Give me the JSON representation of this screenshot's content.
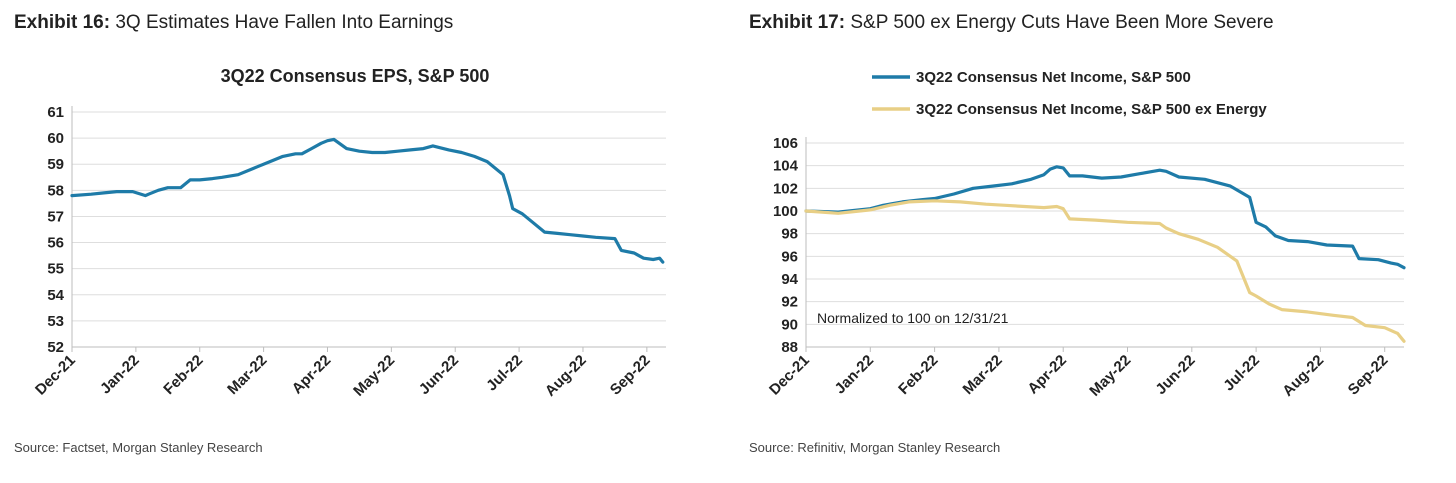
{
  "exhibit16": {
    "label": "Exhibit 16:",
    "title": "3Q Estimates Have Fallen Into Earnings",
    "source": "Source: Factset, Morgan Stanley Research"
  },
  "exhibit17": {
    "label": "Exhibit 17:",
    "title": "S&P 500 ex Energy Cuts Have Been More Severe",
    "source": "Source: Refinitiv, Morgan Stanley Research"
  },
  "chart_data": [
    {
      "type": "line",
      "title": "3Q22 Consensus EPS, S&P 500",
      "xlabel": "",
      "ylabel": "",
      "x_ticks": [
        "Dec-21",
        "Jan-22",
        "Feb-22",
        "Mar-22",
        "Apr-22",
        "May-22",
        "Jun-22",
        "Jul-22",
        "Aug-22",
        "Sep-22"
      ],
      "xlim": [
        0,
        9.3
      ],
      "y_ticks": [
        52,
        53,
        54,
        55,
        56,
        57,
        58,
        59,
        60,
        61
      ],
      "ylim": [
        52,
        61
      ],
      "grid": true,
      "colors": {
        "line": "#1e7ba8"
      },
      "series": [
        {
          "x": [
            0,
            0.3,
            0.5,
            0.7,
            0.95,
            1.15,
            1.2,
            1.35,
            1.5,
            1.7,
            1.8,
            1.85,
            2.0,
            2.2,
            2.35,
            2.6,
            2.9,
            3.1,
            3.3,
            3.5,
            3.6,
            3.75,
            3.9,
            4.0,
            4.1,
            4.3,
            4.5,
            4.7,
            4.9,
            5.1,
            5.3,
            5.5,
            5.65,
            5.9,
            6.1,
            6.3,
            6.5,
            6.75,
            6.85,
            6.9,
            7.05,
            7.2,
            7.4,
            7.6,
            7.8,
            8.0,
            8.2,
            8.5,
            8.6,
            8.8,
            8.95,
            9.1,
            9.2,
            9.25
          ],
          "values": [
            57.8,
            57.85,
            57.9,
            57.95,
            57.95,
            57.8,
            57.85,
            58.0,
            58.1,
            58.1,
            58.3,
            58.4,
            58.4,
            58.45,
            58.5,
            58.6,
            58.9,
            59.1,
            59.3,
            59.4,
            59.4,
            59.6,
            59.8,
            59.9,
            59.95,
            59.6,
            59.5,
            59.45,
            59.45,
            59.5,
            59.55,
            59.6,
            59.7,
            59.55,
            59.45,
            59.3,
            59.1,
            58.6,
            57.8,
            57.3,
            57.1,
            56.8,
            56.4,
            56.35,
            56.3,
            56.25,
            56.2,
            56.15,
            55.7,
            55.6,
            55.4,
            55.35,
            55.4,
            55.25
          ]
        }
      ]
    },
    {
      "type": "line",
      "title": "",
      "annotation": "Normalized to 100 on 12/31/21",
      "xlabel": "",
      "ylabel": "",
      "x_ticks": [
        "Dec-21",
        "Jan-22",
        "Feb-22",
        "Mar-22",
        "Apr-22",
        "May-22",
        "Jun-22",
        "Jul-22",
        "Aug-22",
        "Sep-22"
      ],
      "xlim": [
        0,
        9.3
      ],
      "y_ticks": [
        88,
        90,
        92,
        94,
        96,
        98,
        100,
        102,
        104,
        106
      ],
      "ylim": [
        88,
        106
      ],
      "grid": true,
      "legend": "top",
      "series": [
        {
          "name": "3Q22 Consensus Net Income, S&P 500",
          "color": "#1e7ba8",
          "x": [
            0,
            0.5,
            1.0,
            1.2,
            1.5,
            1.8,
            2.0,
            2.3,
            2.6,
            2.9,
            3.2,
            3.5,
            3.7,
            3.8,
            3.9,
            4.0,
            4.1,
            4.3,
            4.6,
            4.9,
            5.2,
            5.5,
            5.6,
            5.8,
            6.2,
            6.6,
            6.9,
            7.0,
            7.15,
            7.3,
            7.5,
            7.8,
            8.1,
            8.5,
            8.6,
            8.9,
            9.1,
            9.2,
            9.3
          ],
          "values": [
            100,
            99.9,
            100.2,
            100.5,
            100.8,
            101.0,
            101.1,
            101.5,
            102.0,
            102.2,
            102.4,
            102.8,
            103.2,
            103.7,
            103.9,
            103.8,
            103.1,
            103.1,
            102.9,
            103.0,
            103.3,
            103.6,
            103.5,
            103.0,
            102.8,
            102.2,
            101.2,
            99.0,
            98.6,
            97.8,
            97.4,
            97.3,
            97.0,
            96.9,
            95.8,
            95.7,
            95.4,
            95.3,
            95.0
          ]
        },
        {
          "name": "3Q22 Consensus Net Income, S&P 500 ex Energy",
          "color": "#e8cf86",
          "x": [
            0,
            0.5,
            1.0,
            1.3,
            1.6,
            2.0,
            2.4,
            2.8,
            3.1,
            3.4,
            3.7,
            3.9,
            4.0,
            4.1,
            4.5,
            5.0,
            5.5,
            5.6,
            5.8,
            6.1,
            6.4,
            6.7,
            6.9,
            7.0,
            7.2,
            7.4,
            7.8,
            8.2,
            8.5,
            8.7,
            9.0,
            9.2,
            9.3
          ],
          "values": [
            100,
            99.8,
            100.1,
            100.5,
            100.8,
            100.9,
            100.8,
            100.6,
            100.5,
            100.4,
            100.3,
            100.4,
            100.2,
            99.3,
            99.2,
            99.0,
            98.9,
            98.5,
            98.0,
            97.5,
            96.8,
            95.6,
            92.8,
            92.5,
            91.8,
            91.3,
            91.1,
            90.8,
            90.6,
            89.9,
            89.7,
            89.2,
            88.5
          ]
        }
      ]
    }
  ]
}
